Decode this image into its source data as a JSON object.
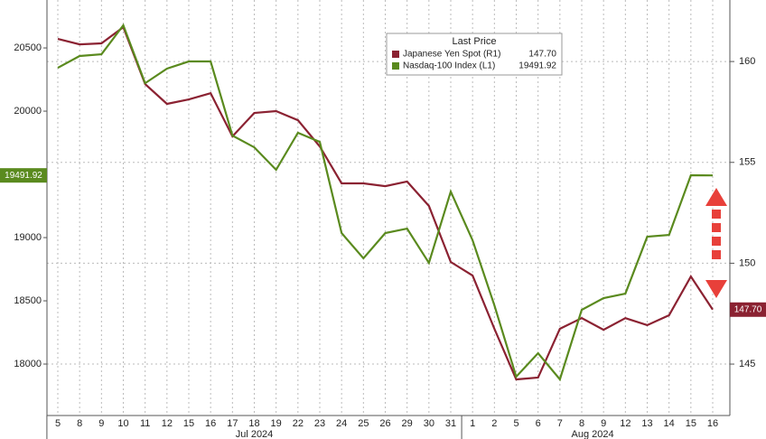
{
  "chart_data": {
    "type": "line",
    "legend_title": "Last Price",
    "categories": [
      "5",
      "8",
      "9",
      "10",
      "11",
      "12",
      "15",
      "16",
      "17",
      "18",
      "19",
      "22",
      "23",
      "24",
      "25",
      "26",
      "29",
      "30",
      "31",
      "1",
      "2",
      "5",
      "6",
      "7",
      "8",
      "9",
      "12",
      "13",
      "14",
      "15",
      "16"
    ],
    "x_groups": [
      {
        "label": "Jul 2024",
        "from": 0,
        "to": 18
      },
      {
        "label": "Aug 2024",
        "from": 19,
        "to": 30
      }
    ],
    "ylim": [
      17593,
      20879
    ],
    "yticks": [
      18000,
      18500,
      19000,
      20000,
      20500
    ],
    "y2lim": [
      142.45,
      163.05
    ],
    "y2ticks": [
      145,
      150,
      155,
      160
    ],
    "grid": true,
    "series": [
      {
        "name": "Japanese Yen Spot  (R1)",
        "axis": "y2",
        "color": "#8b2232",
        "last_label": "147.70",
        "values": [
          161.12,
          160.85,
          160.9,
          161.7,
          158.88,
          157.9,
          158.12,
          158.43,
          156.29,
          157.45,
          157.54,
          157.09,
          155.79,
          153.96,
          153.96,
          153.82,
          154.05,
          152.84,
          150.06,
          149.39,
          146.75,
          144.24,
          144.33,
          146.75,
          147.28,
          146.7,
          147.28,
          146.93,
          147.42,
          149.34,
          147.7
        ]
      },
      {
        "name": "Nasdaq-100 Index  (L1)",
        "axis": "y",
        "color": "#5a8a1e",
        "last_label": "19491.92",
        "values": [
          20343,
          20436,
          20450,
          20679,
          20221,
          20336,
          20393,
          20393,
          19807,
          19714,
          19536,
          19829,
          19757,
          19036,
          18836,
          19036,
          19071,
          18800,
          19364,
          18979,
          18464,
          17900,
          18086,
          17879,
          18429,
          18521,
          18557,
          19007,
          19021,
          19493,
          19491.92
        ]
      }
    ]
  }
}
